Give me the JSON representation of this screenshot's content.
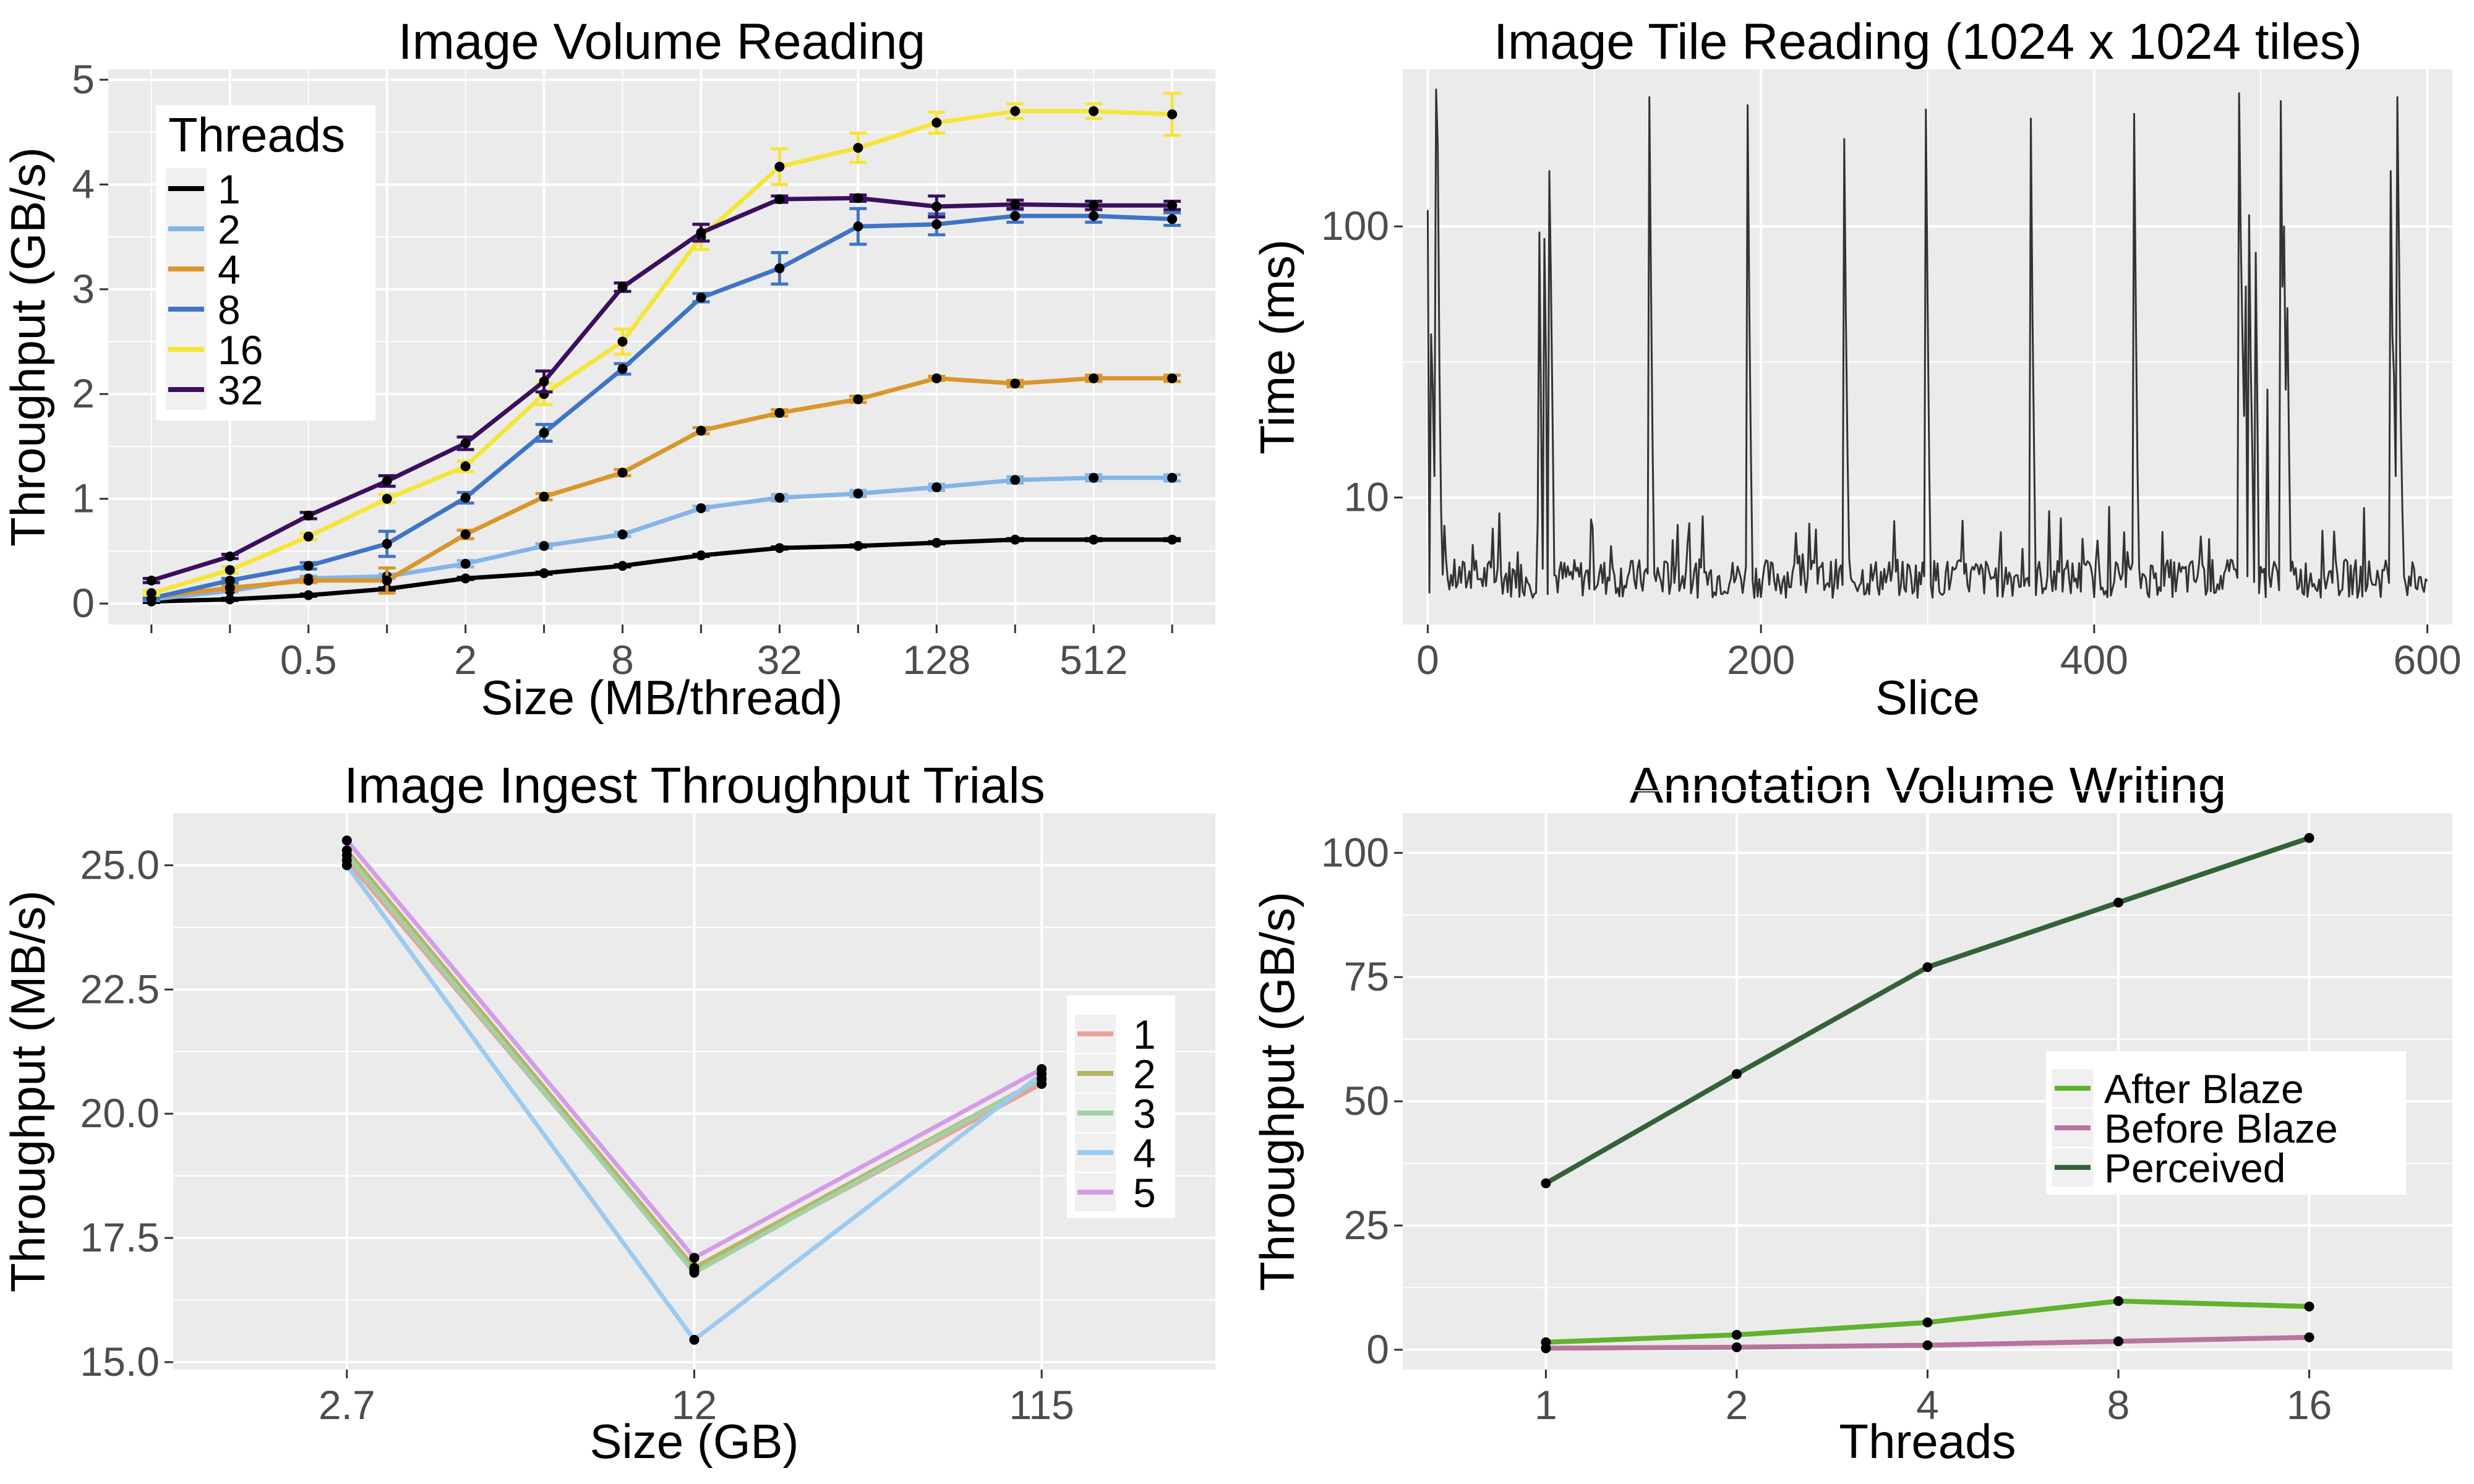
{
  "chart_data": [
    {
      "type": "line",
      "title": "Image Volume Reading",
      "xlabel": "Size (MB/thread)",
      "ylabel": "Throughput (GB/s)",
      "x_scale": "log2",
      "x": [
        0.125,
        0.25,
        0.5,
        1,
        2,
        4,
        8,
        16,
        32,
        64,
        128,
        256,
        512,
        1024
      ],
      "x_tick_labels": [
        "0.5",
        "2",
        "8",
        "32",
        "128",
        "512"
      ],
      "x_tick_values": [
        0.5,
        2,
        8,
        32,
        128,
        512
      ],
      "y_ticks": [
        0,
        1,
        2,
        3,
        4,
        5
      ],
      "ylim": [
        -0.2,
        5.1
      ],
      "grid": true,
      "legend": {
        "title": "Threads",
        "position": "top-left"
      },
      "series": [
        {
          "name": "1",
          "color": "#000000",
          "values": [
            0.02,
            0.04,
            0.08,
            0.14,
            0.24,
            0.29,
            0.36,
            0.46,
            0.53,
            0.55,
            0.58,
            0.61,
            0.61,
            0.61
          ],
          "errors": [
            0.01,
            0.01,
            0.01,
            0.01,
            0.01,
            0.01,
            0.01,
            0.01,
            0.01,
            0.01,
            0.01,
            0.01,
            0.01,
            0.01
          ]
        },
        {
          "name": "2",
          "color": "#85b4e6",
          "values": [
            0.04,
            0.12,
            0.24,
            0.26,
            0.38,
            0.55,
            0.66,
            0.91,
            1.01,
            1.05,
            1.11,
            1.18,
            1.2,
            1.2
          ],
          "errors": [
            0.01,
            0.01,
            0.02,
            0.02,
            0.03,
            0.02,
            0.02,
            0.02,
            0.03,
            0.03,
            0.03,
            0.03,
            0.03,
            0.03
          ]
        },
        {
          "name": "4",
          "color": "#d9962b",
          "values": [
            0.06,
            0.15,
            0.22,
            0.22,
            0.66,
            1.02,
            1.25,
            1.65,
            1.82,
            1.95,
            2.15,
            2.1,
            2.15,
            2.15
          ],
          "errors": [
            0.01,
            0.02,
            0.02,
            0.12,
            0.04,
            0.03,
            0.03,
            0.03,
            0.03,
            0.03,
            0.02,
            0.03,
            0.03,
            0.03
          ]
        },
        {
          "name": "8",
          "color": "#3f74c6",
          "values": [
            0.05,
            0.22,
            0.36,
            0.57,
            1.01,
            1.63,
            2.24,
            2.92,
            3.2,
            3.6,
            3.62,
            3.7,
            3.7,
            3.67
          ],
          "errors": [
            0.01,
            0.02,
            0.03,
            0.12,
            0.05,
            0.08,
            0.05,
            0.04,
            0.15,
            0.17,
            0.1,
            0.06,
            0.06,
            0.06
          ]
        },
        {
          "name": "16",
          "color": "#f5e539",
          "values": [
            0.1,
            0.32,
            0.64,
            1.0,
            1.31,
            2.0,
            2.5,
            3.5,
            4.17,
            4.35,
            4.59,
            4.7,
            4.7,
            4.67
          ],
          "errors": [
            0.02,
            0.03,
            0.03,
            0.04,
            0.05,
            0.1,
            0.12,
            0.12,
            0.17,
            0.14,
            0.1,
            0.07,
            0.07,
            0.2
          ]
        },
        {
          "name": "32",
          "color": "#3b0f5e",
          "values": [
            0.22,
            0.45,
            0.84,
            1.17,
            1.53,
            2.12,
            3.02,
            3.54,
            3.86,
            3.87,
            3.79,
            3.81,
            3.8,
            3.8
          ],
          "errors": [
            0.02,
            0.02,
            0.03,
            0.05,
            0.06,
            0.1,
            0.04,
            0.08,
            0.03,
            0.03,
            0.1,
            0.04,
            0.04,
            0.04
          ]
        }
      ]
    },
    {
      "type": "line",
      "title": "Image Tile Reading (1024 x 1024 tiles)",
      "xlabel": "Slice",
      "ylabel": "Time (ms)",
      "y_scale": "log10",
      "xlim": [
        -15,
        615
      ],
      "ylim": [
        3.4,
        380
      ],
      "x_ticks": [
        0,
        200,
        400,
        600
      ],
      "y_tick_labels": [
        "10",
        "100"
      ],
      "y_tick_values": [
        10,
        100
      ],
      "grid": true,
      "line_color": "#333333",
      "n_points": 601,
      "baseline_ms": 5.2,
      "spikes": [
        {
          "slice": 0,
          "ms": 115
        },
        {
          "slice": 2,
          "ms": 40
        },
        {
          "slice": 3,
          "ms": 25
        },
        {
          "slice": 4,
          "ms": 12
        },
        {
          "slice": 5,
          "ms": 320
        },
        {
          "slice": 6,
          "ms": 200
        },
        {
          "slice": 7,
          "ms": 30
        },
        {
          "slice": 8,
          "ms": 9
        },
        {
          "slice": 67,
          "ms": 95
        },
        {
          "slice": 68,
          "ms": 20
        },
        {
          "slice": 70,
          "ms": 90
        },
        {
          "slice": 71,
          "ms": 30
        },
        {
          "slice": 73,
          "ms": 160
        },
        {
          "slice": 74,
          "ms": 60
        },
        {
          "slice": 75,
          "ms": 18
        },
        {
          "slice": 133,
          "ms": 300
        },
        {
          "slice": 134,
          "ms": 60
        },
        {
          "slice": 135,
          "ms": 15
        },
        {
          "slice": 192,
          "ms": 280
        },
        {
          "slice": 193,
          "ms": 50
        },
        {
          "slice": 194,
          "ms": 14
        },
        {
          "slice": 250,
          "ms": 210
        },
        {
          "slice": 251,
          "ms": 45
        },
        {
          "slice": 252,
          "ms": 14
        },
        {
          "slice": 299,
          "ms": 270
        },
        {
          "slice": 300,
          "ms": 55
        },
        {
          "slice": 301,
          "ms": 13
        },
        {
          "slice": 362,
          "ms": 250
        },
        {
          "slice": 363,
          "ms": 45
        },
        {
          "slice": 364,
          "ms": 14
        },
        {
          "slice": 424,
          "ms": 260
        },
        {
          "slice": 425,
          "ms": 50
        },
        {
          "slice": 426,
          "ms": 13
        },
        {
          "slice": 487,
          "ms": 310
        },
        {
          "slice": 488,
          "ms": 90
        },
        {
          "slice": 489,
          "ms": 40
        },
        {
          "slice": 490,
          "ms": 20
        },
        {
          "slice": 491,
          "ms": 60
        },
        {
          "slice": 493,
          "ms": 110
        },
        {
          "slice": 494,
          "ms": 30
        },
        {
          "slice": 495,
          "ms": 14
        },
        {
          "slice": 497,
          "ms": 80
        },
        {
          "slice": 498,
          "ms": 20
        },
        {
          "slice": 504,
          "ms": 25
        },
        {
          "slice": 512,
          "ms": 290
        },
        {
          "slice": 513,
          "ms": 60
        },
        {
          "slice": 514,
          "ms": 100
        },
        {
          "slice": 515,
          "ms": 25
        },
        {
          "slice": 516,
          "ms": 50
        },
        {
          "slice": 517,
          "ms": 15
        },
        {
          "slice": 578,
          "ms": 160
        },
        {
          "slice": 579,
          "ms": 40
        },
        {
          "slice": 580,
          "ms": 28
        },
        {
          "slice": 581,
          "ms": 12
        },
        {
          "slice": 582,
          "ms": 300
        },
        {
          "slice": 583,
          "ms": 80
        },
        {
          "slice": 584,
          "ms": 20
        },
        {
          "slice": 585,
          "ms": 9
        }
      ]
    },
    {
      "type": "line",
      "title": "Image Ingest Throughput Trials",
      "xlabel": "Size (GB)",
      "ylabel": "Throughput (MB/s)",
      "categories": [
        "2.7",
        "12",
        "115"
      ],
      "y_ticks": [
        15.0,
        17.5,
        20.0,
        22.5,
        25.0
      ],
      "y_tick_labels": [
        "15.0",
        "17.5",
        "20.0",
        "22.5",
        "25.0"
      ],
      "ylim": [
        14.85,
        26.05
      ],
      "grid": true,
      "legend": {
        "position": "right"
      },
      "series": [
        {
          "name": "1",
          "color": "#e8a298",
          "values": [
            25.1,
            16.85,
            20.6
          ]
        },
        {
          "name": "2",
          "color": "#b5b565",
          "values": [
            25.3,
            16.9,
            20.7
          ]
        },
        {
          "name": "3",
          "color": "#a1d1a8",
          "values": [
            25.2,
            16.8,
            20.7
          ]
        },
        {
          "name": "4",
          "color": "#9ccaf0",
          "values": [
            25.0,
            15.45,
            20.8
          ]
        },
        {
          "name": "5",
          "color": "#d59be8",
          "values": [
            25.5,
            17.1,
            20.9
          ]
        }
      ]
    },
    {
      "type": "line",
      "title": "Annotation Volume Writing",
      "xlabel": "Threads",
      "ylabel": "Throughput (GB/s)",
      "categories": [
        "1",
        "2",
        "4",
        "8",
        "16"
      ],
      "y_ticks": [
        0,
        25,
        50,
        75,
        100
      ],
      "ylim": [
        -4,
        108
      ],
      "grid": true,
      "legend": {
        "position": "right"
      },
      "series": [
        {
          "name": "After Blaze",
          "color": "#5fb32e",
          "values": [
            1.5,
            3.0,
            5.5,
            9.8,
            8.7
          ]
        },
        {
          "name": "Before Blaze",
          "color": "#b8739f",
          "values": [
            0.3,
            0.5,
            0.9,
            1.7,
            2.5
          ]
        },
        {
          "name": "Perceived",
          "color": "#356139",
          "values": [
            33.5,
            55.5,
            77.0,
            90.0,
            103.0
          ]
        }
      ]
    }
  ]
}
